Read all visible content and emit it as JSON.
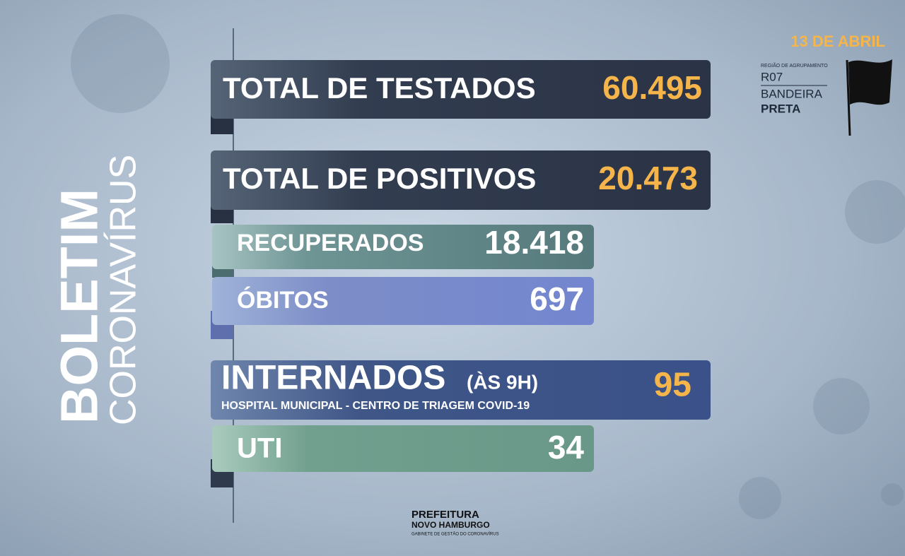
{
  "header": {
    "title": "BOLETIM",
    "subtitle": "CORONAVÍRUS",
    "date": "13 DE ABRIL",
    "region_label": "REGIÃO DE AGRUPAMENTO",
    "region": "R07",
    "flag_line1": "BANDEIRA",
    "flag_line2": "PRETA"
  },
  "panels": [
    {
      "label": "TOTAL DE TESTADOS",
      "value": "60.495"
    },
    {
      "label": "TOTAL DE POSITIVOS",
      "value": "20.473"
    },
    {
      "label": "RECUPERADOS",
      "value": "18.418"
    },
    {
      "label": "ÓBITOS",
      "value": "697"
    },
    {
      "label": "INTERNADOS",
      "note": "(ÀS 9H)",
      "detail": "HOSPITAL MUNICIPAL - CENTRO DE TRIAGEM COVID-19",
      "value": "95"
    },
    {
      "label": "UTI",
      "value": "34"
    }
  ],
  "footer": {
    "logo_line1": "PREFEITURA",
    "logo_line2": "NOVO HAMBURGO",
    "logo_line3": "GABINETE DE GESTÃO DO CORONAVÍRUS"
  }
}
